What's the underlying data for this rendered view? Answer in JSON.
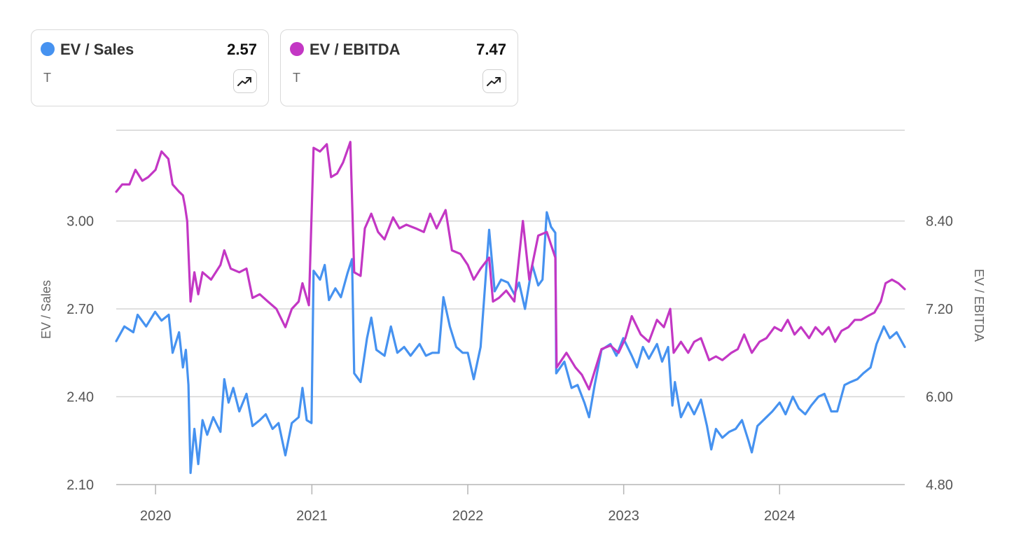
{
  "legend": [
    {
      "name": "EV / Sales",
      "value": "2.57",
      "ticker": "T",
      "color": "#4692f0"
    },
    {
      "name": "EV / EBITDA",
      "value": "7.47",
      "ticker": "T",
      "color": "#c337c4"
    }
  ],
  "icons": {
    "trend": "trending-up-icon"
  },
  "chart_data": {
    "type": "line",
    "x_ticks": [
      "2020",
      "2021",
      "2022",
      "2023",
      "2024"
    ],
    "x_range": [
      "2019-10-01",
      "2024-10-20"
    ],
    "left_axis": {
      "label": "EV / Sales",
      "ticks": [
        "3.00",
        "2.70",
        "2.40",
        "2.10"
      ],
      "range": [
        2.1,
        3.31
      ]
    },
    "right_axis": {
      "label": "EV / EBITDA",
      "ticks": [
        "8.40",
        "7.20",
        "6.00",
        "4.80"
      ],
      "range": [
        4.8,
        9.64
      ]
    },
    "grid": true,
    "series": [
      {
        "name": "EV / Sales",
        "axis": "left",
        "color": "#4692f0",
        "points": [
          [
            "2019-10-01",
            2.59
          ],
          [
            "2019-10-20",
            2.64
          ],
          [
            "2019-11-10",
            2.62
          ],
          [
            "2019-11-20",
            2.68
          ],
          [
            "2019-12-10",
            2.64
          ],
          [
            "2019-12-31",
            2.69
          ],
          [
            "2020-01-15",
            2.66
          ],
          [
            "2020-02-01",
            2.68
          ],
          [
            "2020-02-10",
            2.55
          ],
          [
            "2020-02-25",
            2.62
          ],
          [
            "2020-03-05",
            2.5
          ],
          [
            "2020-03-12",
            2.56
          ],
          [
            "2020-03-18",
            2.44
          ],
          [
            "2020-03-23",
            2.14
          ],
          [
            "2020-04-01",
            2.29
          ],
          [
            "2020-04-10",
            2.17
          ],
          [
            "2020-04-20",
            2.32
          ],
          [
            "2020-05-01",
            2.27
          ],
          [
            "2020-05-15",
            2.33
          ],
          [
            "2020-06-01",
            2.28
          ],
          [
            "2020-06-10",
            2.46
          ],
          [
            "2020-06-20",
            2.38
          ],
          [
            "2020-07-01",
            2.43
          ],
          [
            "2020-07-15",
            2.35
          ],
          [
            "2020-08-01",
            2.41
          ],
          [
            "2020-08-15",
            2.3
          ],
          [
            "2020-09-01",
            2.32
          ],
          [
            "2020-09-15",
            2.34
          ],
          [
            "2020-10-01",
            2.29
          ],
          [
            "2020-10-15",
            2.31
          ],
          [
            "2020-10-31",
            2.2
          ],
          [
            "2020-11-15",
            2.31
          ],
          [
            "2020-12-01",
            2.33
          ],
          [
            "2020-12-10",
            2.43
          ],
          [
            "2020-12-20",
            2.32
          ],
          [
            "2020-12-31",
            2.31
          ],
          [
            "2021-01-05",
            2.83
          ],
          [
            "2021-01-20",
            2.8
          ],
          [
            "2021-01-31",
            2.85
          ],
          [
            "2021-02-10",
            2.73
          ],
          [
            "2021-02-25",
            2.77
          ],
          [
            "2021-03-10",
            2.74
          ],
          [
            "2021-03-25",
            2.82
          ],
          [
            "2021-04-05",
            2.87
          ],
          [
            "2021-04-10",
            2.48
          ],
          [
            "2021-04-25",
            2.45
          ],
          [
            "2021-05-10",
            2.6
          ],
          [
            "2021-05-20",
            2.67
          ],
          [
            "2021-06-01",
            2.56
          ],
          [
            "2021-06-20",
            2.54
          ],
          [
            "2021-07-05",
            2.64
          ],
          [
            "2021-07-20",
            2.55
          ],
          [
            "2021-08-05",
            2.57
          ],
          [
            "2021-08-20",
            2.54
          ],
          [
            "2021-09-10",
            2.58
          ],
          [
            "2021-09-25",
            2.54
          ],
          [
            "2021-10-10",
            2.55
          ],
          [
            "2021-10-25",
            2.55
          ],
          [
            "2021-11-05",
            2.74
          ],
          [
            "2021-11-20",
            2.64
          ],
          [
            "2021-12-05",
            2.57
          ],
          [
            "2021-12-20",
            2.55
          ],
          [
            "2022-01-01",
            2.55
          ],
          [
            "2022-01-15",
            2.46
          ],
          [
            "2022-01-31",
            2.57
          ],
          [
            "2022-02-20",
            2.97
          ],
          [
            "2022-03-05",
            2.76
          ],
          [
            "2022-03-20",
            2.8
          ],
          [
            "2022-04-05",
            2.79
          ],
          [
            "2022-04-20",
            2.75
          ],
          [
            "2022-05-01",
            2.79
          ],
          [
            "2022-05-15",
            2.7
          ],
          [
            "2022-06-01",
            2.85
          ],
          [
            "2022-06-15",
            2.78
          ],
          [
            "2022-06-25",
            2.8
          ],
          [
            "2022-07-05",
            3.03
          ],
          [
            "2022-07-15",
            2.98
          ],
          [
            "2022-07-25",
            2.96
          ],
          [
            "2022-07-27",
            2.48
          ],
          [
            "2022-08-15",
            2.52
          ],
          [
            "2022-09-01",
            2.43
          ],
          [
            "2022-09-15",
            2.44
          ],
          [
            "2022-10-01",
            2.38
          ],
          [
            "2022-10-12",
            2.33
          ],
          [
            "2022-10-25",
            2.44
          ],
          [
            "2022-11-10",
            2.56
          ],
          [
            "2022-12-01",
            2.58
          ],
          [
            "2022-12-15",
            2.54
          ],
          [
            "2022-12-31",
            2.6
          ],
          [
            "2023-01-20",
            2.54
          ],
          [
            "2023-02-01",
            2.5
          ],
          [
            "2023-02-15",
            2.57
          ],
          [
            "2023-03-01",
            2.53
          ],
          [
            "2023-03-20",
            2.58
          ],
          [
            "2023-04-01",
            2.52
          ],
          [
            "2023-04-15",
            2.57
          ],
          [
            "2023-04-25",
            2.37
          ],
          [
            "2023-05-01",
            2.45
          ],
          [
            "2023-05-15",
            2.33
          ],
          [
            "2023-06-01",
            2.38
          ],
          [
            "2023-06-15",
            2.34
          ],
          [
            "2023-07-01",
            2.39
          ],
          [
            "2023-07-15",
            2.3
          ],
          [
            "2023-07-25",
            2.22
          ],
          [
            "2023-08-05",
            2.29
          ],
          [
            "2023-08-20",
            2.26
          ],
          [
            "2023-09-05",
            2.28
          ],
          [
            "2023-09-20",
            2.29
          ],
          [
            "2023-10-05",
            2.32
          ],
          [
            "2023-10-20",
            2.25
          ],
          [
            "2023-10-28",
            2.21
          ],
          [
            "2023-11-10",
            2.3
          ],
          [
            "2023-12-01",
            2.33
          ],
          [
            "2023-12-15",
            2.35
          ],
          [
            "2024-01-01",
            2.38
          ],
          [
            "2024-01-15",
            2.34
          ],
          [
            "2024-02-01",
            2.4
          ],
          [
            "2024-02-15",
            2.36
          ],
          [
            "2024-03-01",
            2.34
          ],
          [
            "2024-03-15",
            2.37
          ],
          [
            "2024-04-01",
            2.4
          ],
          [
            "2024-04-15",
            2.41
          ],
          [
            "2024-05-01",
            2.35
          ],
          [
            "2024-05-15",
            2.35
          ],
          [
            "2024-06-01",
            2.44
          ],
          [
            "2024-06-15",
            2.45
          ],
          [
            "2024-07-01",
            2.46
          ],
          [
            "2024-07-15",
            2.48
          ],
          [
            "2024-08-01",
            2.5
          ],
          [
            "2024-08-15",
            2.58
          ],
          [
            "2024-09-01",
            2.64
          ],
          [
            "2024-09-15",
            2.6
          ],
          [
            "2024-10-01",
            2.62
          ],
          [
            "2024-10-20",
            2.57
          ]
        ]
      },
      {
        "name": "EV / EBITDA",
        "axis": "right",
        "color": "#c337c4",
        "points": [
          [
            "2019-10-01",
            8.8
          ],
          [
            "2019-10-15",
            8.9
          ],
          [
            "2019-11-01",
            8.9
          ],
          [
            "2019-11-15",
            9.1
          ],
          [
            "2019-12-01",
            8.95
          ],
          [
            "2019-12-15",
            9.0
          ],
          [
            "2020-01-01",
            9.1
          ],
          [
            "2020-01-15",
            9.35
          ],
          [
            "2020-01-31",
            9.25
          ],
          [
            "2020-02-10",
            8.9
          ],
          [
            "2020-02-25",
            8.8
          ],
          [
            "2020-03-05",
            8.75
          ],
          [
            "2020-03-10",
            8.6
          ],
          [
            "2020-03-15",
            8.4
          ],
          [
            "2020-03-23",
            7.3
          ],
          [
            "2020-04-01",
            7.7
          ],
          [
            "2020-04-10",
            7.4
          ],
          [
            "2020-04-20",
            7.7
          ],
          [
            "2020-05-10",
            7.6
          ],
          [
            "2020-06-01",
            7.8
          ],
          [
            "2020-06-10",
            8.0
          ],
          [
            "2020-06-25",
            7.75
          ],
          [
            "2020-07-15",
            7.7
          ],
          [
            "2020-08-01",
            7.75
          ],
          [
            "2020-08-15",
            7.35
          ],
          [
            "2020-09-01",
            7.4
          ],
          [
            "2020-09-20",
            7.3
          ],
          [
            "2020-10-10",
            7.2
          ],
          [
            "2020-10-31",
            6.95
          ],
          [
            "2020-11-15",
            7.2
          ],
          [
            "2020-12-01",
            7.3
          ],
          [
            "2020-12-10",
            7.55
          ],
          [
            "2020-12-25",
            7.25
          ],
          [
            "2021-01-05",
            9.4
          ],
          [
            "2021-01-20",
            9.35
          ],
          [
            "2021-02-05",
            9.45
          ],
          [
            "2021-02-15",
            9.0
          ],
          [
            "2021-03-01",
            9.05
          ],
          [
            "2021-03-15",
            9.2
          ],
          [
            "2021-04-01",
            9.48
          ],
          [
            "2021-04-10",
            7.7
          ],
          [
            "2021-04-25",
            7.65
          ],
          [
            "2021-05-05",
            8.3
          ],
          [
            "2021-05-20",
            8.5
          ],
          [
            "2021-06-05",
            8.25
          ],
          [
            "2021-06-20",
            8.15
          ],
          [
            "2021-07-10",
            8.45
          ],
          [
            "2021-07-25",
            8.3
          ],
          [
            "2021-08-10",
            8.35
          ],
          [
            "2021-09-01",
            8.3
          ],
          [
            "2021-09-20",
            8.25
          ],
          [
            "2021-10-05",
            8.5
          ],
          [
            "2021-10-20",
            8.3
          ],
          [
            "2021-11-10",
            8.55
          ],
          [
            "2021-11-25",
            8.0
          ],
          [
            "2021-12-15",
            7.95
          ],
          [
            "2022-01-01",
            7.8
          ],
          [
            "2022-01-15",
            7.6
          ],
          [
            "2022-01-31",
            7.75
          ],
          [
            "2022-02-20",
            7.9
          ],
          [
            "2022-03-01",
            7.3
          ],
          [
            "2022-03-15",
            7.35
          ],
          [
            "2022-04-01",
            7.45
          ],
          [
            "2022-04-20",
            7.3
          ],
          [
            "2022-05-10",
            8.4
          ],
          [
            "2022-05-25",
            7.6
          ],
          [
            "2022-06-15",
            8.2
          ],
          [
            "2022-07-05",
            8.25
          ],
          [
            "2022-07-25",
            7.9
          ],
          [
            "2022-07-28",
            6.4
          ],
          [
            "2022-08-20",
            6.6
          ],
          [
            "2022-09-10",
            6.4
          ],
          [
            "2022-09-25",
            6.3
          ],
          [
            "2022-10-12",
            6.1
          ],
          [
            "2022-10-25",
            6.35
          ],
          [
            "2022-11-10",
            6.65
          ],
          [
            "2022-12-01",
            6.7
          ],
          [
            "2022-12-20",
            6.6
          ],
          [
            "2023-01-05",
            6.8
          ],
          [
            "2023-01-20",
            7.1
          ],
          [
            "2023-02-10",
            6.85
          ],
          [
            "2023-03-01",
            6.75
          ],
          [
            "2023-03-20",
            7.05
          ],
          [
            "2023-04-05",
            6.95
          ],
          [
            "2023-04-20",
            7.2
          ],
          [
            "2023-04-28",
            6.6
          ],
          [
            "2023-05-15",
            6.75
          ],
          [
            "2023-06-01",
            6.6
          ],
          [
            "2023-06-15",
            6.75
          ],
          [
            "2023-07-01",
            6.8
          ],
          [
            "2023-07-20",
            6.5
          ],
          [
            "2023-08-05",
            6.55
          ],
          [
            "2023-08-20",
            6.5
          ],
          [
            "2023-09-10",
            6.6
          ],
          [
            "2023-09-25",
            6.65
          ],
          [
            "2023-10-10",
            6.85
          ],
          [
            "2023-10-28",
            6.6
          ],
          [
            "2023-11-15",
            6.75
          ],
          [
            "2023-12-01",
            6.8
          ],
          [
            "2023-12-20",
            6.95
          ],
          [
            "2024-01-05",
            6.9
          ],
          [
            "2024-01-20",
            7.05
          ],
          [
            "2024-02-05",
            6.85
          ],
          [
            "2024-02-20",
            6.95
          ],
          [
            "2024-03-10",
            6.8
          ],
          [
            "2024-03-25",
            6.95
          ],
          [
            "2024-04-10",
            6.85
          ],
          [
            "2024-04-25",
            6.95
          ],
          [
            "2024-05-10",
            6.75
          ],
          [
            "2024-05-25",
            6.9
          ],
          [
            "2024-06-10",
            6.95
          ],
          [
            "2024-06-25",
            7.05
          ],
          [
            "2024-07-10",
            7.05
          ],
          [
            "2024-07-25",
            7.1
          ],
          [
            "2024-08-10",
            7.15
          ],
          [
            "2024-08-25",
            7.3
          ],
          [
            "2024-09-05",
            7.55
          ],
          [
            "2024-09-20",
            7.6
          ],
          [
            "2024-10-05",
            7.55
          ],
          [
            "2024-10-20",
            7.47
          ]
        ]
      }
    ]
  }
}
